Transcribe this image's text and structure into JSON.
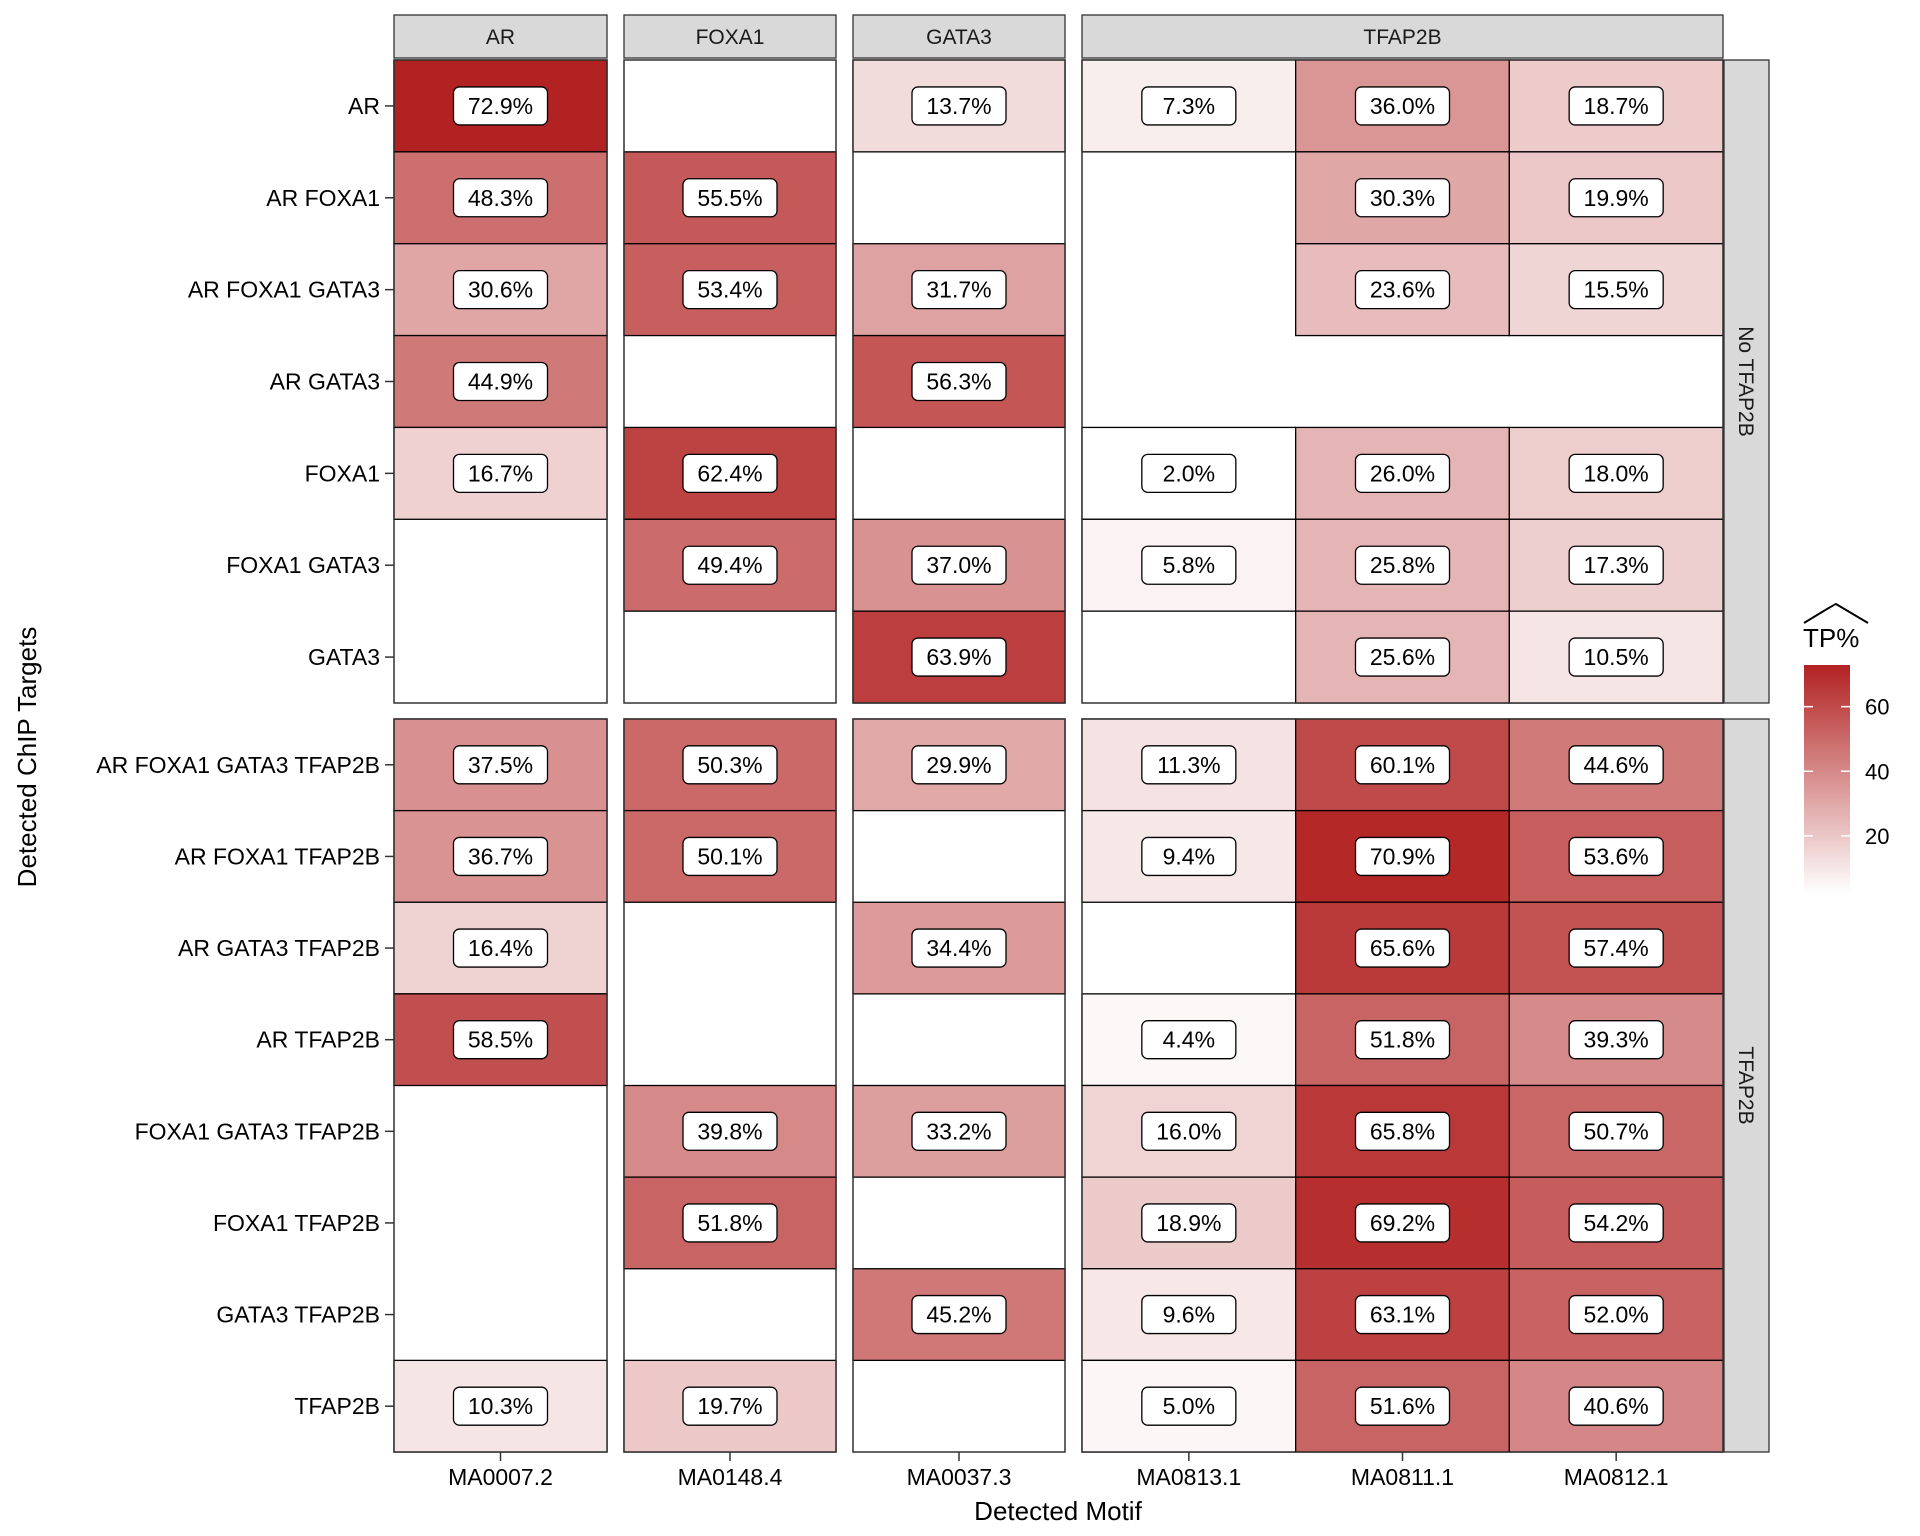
{
  "chart_data": {
    "type": "heatmap",
    "xlabel": "Detected Motif",
    "ylabel": "Detected ChIP Targets",
    "legend": {
      "title": "TP%",
      "title_hat": true,
      "ticks": [
        20,
        40,
        60
      ],
      "range": [
        2.0,
        72.9
      ],
      "placement": "right",
      "low_color": "#FFFFFF",
      "high_color": "#B22222"
    },
    "column_facets": [
      {
        "label": "AR",
        "columns": [
          "MA0007.2"
        ]
      },
      {
        "label": "FOXA1",
        "columns": [
          "MA0148.4"
        ]
      },
      {
        "label": "GATA3",
        "columns": [
          "MA0037.3"
        ]
      },
      {
        "label": "TFAP2B",
        "columns": [
          "MA0813.1",
          "MA0811.1",
          "MA0812.1"
        ]
      }
    ],
    "columns": [
      "MA0007.2",
      "MA0148.4",
      "MA0037.3",
      "MA0813.1",
      "MA0811.1",
      "MA0812.1"
    ],
    "row_facets": [
      {
        "label": "No TFAP2B",
        "rows": [
          {
            "name": "AR",
            "values": [
              72.9,
              null,
              13.7,
              7.3,
              36.0,
              18.7
            ]
          },
          {
            "name": "AR FOXA1",
            "values": [
              48.3,
              55.5,
              null,
              null,
              30.3,
              19.9
            ]
          },
          {
            "name": "AR FOXA1 GATA3",
            "values": [
              30.6,
              53.4,
              31.7,
              null,
              23.6,
              15.5
            ]
          },
          {
            "name": "AR GATA3",
            "values": [
              44.9,
              null,
              56.3,
              null,
              null,
              null
            ]
          },
          {
            "name": "FOXA1",
            "values": [
              16.7,
              62.4,
              null,
              2.0,
              26.0,
              18.0
            ]
          },
          {
            "name": "FOXA1 GATA3",
            "values": [
              null,
              49.4,
              37.0,
              5.8,
              25.8,
              17.3
            ]
          },
          {
            "name": "GATA3",
            "values": [
              null,
              null,
              63.9,
              null,
              25.6,
              10.5
            ]
          }
        ]
      },
      {
        "label": "TFAP2B",
        "rows": [
          {
            "name": "AR FOXA1 GATA3 TFAP2B",
            "values": [
              37.5,
              50.3,
              29.9,
              11.3,
              60.1,
              44.6
            ]
          },
          {
            "name": "AR FOXA1 TFAP2B",
            "values": [
              36.7,
              50.1,
              null,
              9.4,
              70.9,
              53.6
            ]
          },
          {
            "name": "AR GATA3 TFAP2B",
            "values": [
              16.4,
              null,
              34.4,
              null,
              65.6,
              57.4
            ]
          },
          {
            "name": "AR TFAP2B",
            "values": [
              58.5,
              null,
              null,
              4.4,
              51.8,
              39.3
            ]
          },
          {
            "name": "FOXA1 GATA3 TFAP2B",
            "values": [
              null,
              39.8,
              33.2,
              16.0,
              65.8,
              50.7
            ]
          },
          {
            "name": "FOXA1 TFAP2B",
            "values": [
              null,
              51.8,
              null,
              18.9,
              69.2,
              54.2
            ]
          },
          {
            "name": "GATA3 TFAP2B",
            "values": [
              null,
              null,
              45.2,
              9.6,
              63.1,
              52.0
            ]
          },
          {
            "name": "TFAP2B",
            "values": [
              10.3,
              19.7,
              null,
              5.0,
              51.6,
              40.6
            ]
          }
        ]
      }
    ]
  }
}
